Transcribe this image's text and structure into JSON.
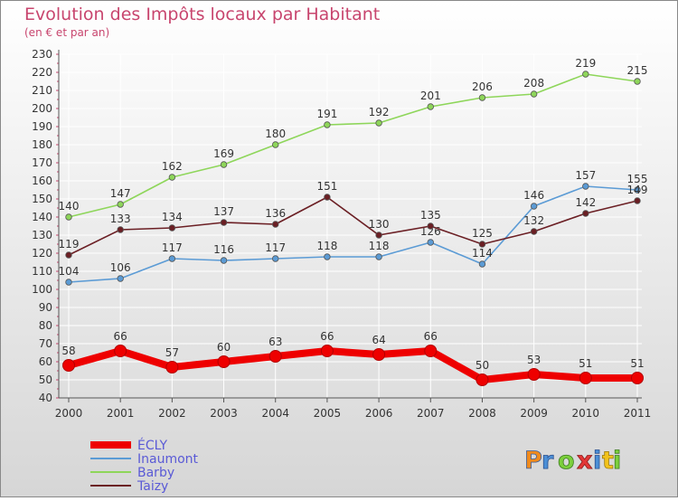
{
  "chart_data": {
    "type": "line",
    "title": "Evolution des Impôts locaux par Habitant",
    "subtitle": "(en € et par an)",
    "x": [
      "2000",
      "2001",
      "2002",
      "2003",
      "2004",
      "2005",
      "2006",
      "2007",
      "2008",
      "2009",
      "2010",
      "2011"
    ],
    "ylim": [
      40,
      230
    ],
    "yticks": [
      40,
      50,
      60,
      70,
      80,
      90,
      100,
      110,
      120,
      130,
      140,
      150,
      160,
      170,
      180,
      190,
      200,
      210,
      220,
      230
    ],
    "grid": true,
    "legend_position": "bottom-left",
    "series": [
      {
        "name": "ÉCLY",
        "color": "#ee0000",
        "values": [
          58,
          66,
          57,
          60,
          63,
          66,
          64,
          66,
          50,
          53,
          51,
          51
        ]
      },
      {
        "name": "Inaumont",
        "color": "#5b9bd5",
        "values": [
          104,
          106,
          117,
          116,
          117,
          118,
          118,
          126,
          114,
          146,
          157,
          155
        ]
      },
      {
        "name": "Barby",
        "color": "#8ed65a",
        "values": [
          140,
          147,
          162,
          169,
          180,
          191,
          192,
          201,
          206,
          208,
          219,
          215
        ]
      },
      {
        "name": "Taizy",
        "color": "#6b1f24",
        "values": [
          119,
          133,
          134,
          137,
          136,
          151,
          130,
          135,
          125,
          132,
          142,
          149
        ]
      }
    ]
  },
  "logo": {
    "text": "Proxiti"
  },
  "colors": {
    "title": "#c8456e",
    "background_top": "#ffffff",
    "background_bottom": "#d8d8d8"
  }
}
